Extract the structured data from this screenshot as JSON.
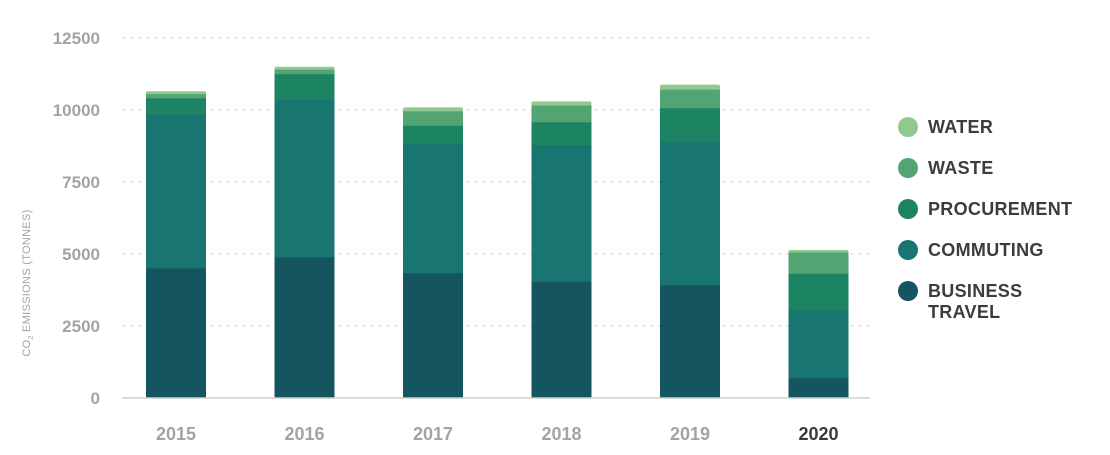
{
  "chart_data": {
    "type": "bar",
    "stacked": true,
    "categories": [
      "2015",
      "2016",
      "2017",
      "2018",
      "2019",
      "2020"
    ],
    "highlight_category": "2020",
    "ylabel": {
      "main": "CO",
      "sub": "2",
      "rest": " EMISSIONS (TONNES)"
    },
    "ylim": [
      0,
      12500
    ],
    "yticks": [
      0,
      2500,
      5000,
      7500,
      10000,
      12500
    ],
    "grid": true,
    "legend_position": "right",
    "series": [
      {
        "name": "BUSINESS TRAVEL",
        "color": "#14555f",
        "values": [
          4520,
          4900,
          4350,
          4050,
          3930,
          700
        ]
      },
      {
        "name": "COMMUTING",
        "color": "#19756f",
        "values": [
          5340,
          5470,
          4480,
          4750,
          4970,
          2370
        ]
      },
      {
        "name": "PROCUREMENT",
        "color": "#1d8463",
        "values": [
          560,
          890,
          640,
          790,
          1180,
          1260
        ]
      },
      {
        "name": "WASTE",
        "color": "#52a472",
        "values": [
          150,
          160,
          500,
          580,
          640,
          740
        ]
      },
      {
        "name": "WATER",
        "color": "#90c98f",
        "values": [
          80,
          80,
          120,
          130,
          160,
          70
        ]
      }
    ]
  }
}
